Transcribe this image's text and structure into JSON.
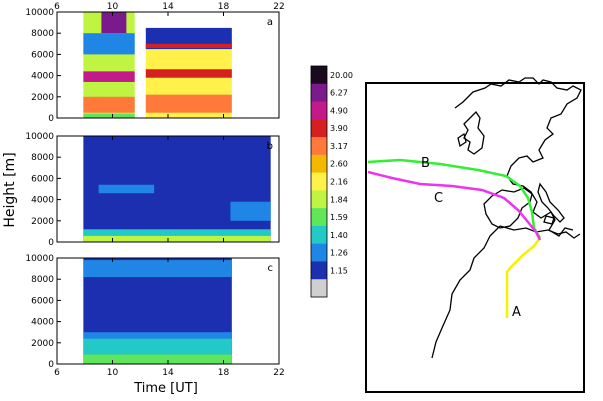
{
  "chart_data": {
    "type": "heatmap",
    "xlabel": "Time [UT]",
    "ylabel": "Height [m]",
    "x_ticks": [
      "6",
      "10",
      "14",
      "18",
      "22"
    ],
    "y_ticks": [
      "0",
      "2000",
      "4000",
      "6000",
      "8000",
      "10000"
    ],
    "xlim": [
      6,
      22
    ],
    "ylim": [
      0,
      10000
    ],
    "panels": [
      {
        "label": "a",
        "regions": [
          {
            "t0": 7.9,
            "t1": 11.6,
            "h0": 0,
            "h1": 10000,
            "v": 1.9
          },
          {
            "t0": 12.4,
            "t1": 18.6,
            "h0": 0,
            "h1": 6500,
            "v": 2.3
          },
          {
            "t0": 12.4,
            "t1": 18.6,
            "h0": 6500,
            "h1": 8500,
            "v": 1.15
          },
          {
            "t0": 7.9,
            "t1": 11.6,
            "h0": 3400,
            "h1": 4400,
            "v": 4.9
          },
          {
            "t0": 12.4,
            "t1": 18.6,
            "h0": 3800,
            "h1": 4600,
            "v": 3.9
          },
          {
            "t0": 7.9,
            "t1": 11.6,
            "h0": 500,
            "h1": 2000,
            "v": 3.17
          },
          {
            "t0": 12.4,
            "t1": 18.6,
            "h0": 500,
            "h1": 2200,
            "v": 3.17
          },
          {
            "t0": 7.9,
            "t1": 11.6,
            "h0": 6000,
            "h1": 8000,
            "v": 1.26
          },
          {
            "t0": 9.2,
            "t1": 11.0,
            "h0": 8000,
            "h1": 10000,
            "v": 6.27
          },
          {
            "t0": 12.4,
            "t1": 18.6,
            "h0": 6600,
            "h1": 7000,
            "v": 3.9
          },
          {
            "t0": 7.9,
            "t1": 11.6,
            "h0": 0,
            "h1": 400,
            "v": 1.59
          }
        ]
      },
      {
        "label": "b",
        "regions": [
          {
            "t0": 7.9,
            "t1": 21.4,
            "h0": 0,
            "h1": 10000,
            "v": 1.15
          },
          {
            "t0": 7.9,
            "t1": 21.4,
            "h0": 0,
            "h1": 600,
            "v": 1.84
          },
          {
            "t0": 7.9,
            "t1": 21.4,
            "h0": 600,
            "h1": 1200,
            "v": 1.4
          },
          {
            "t0": 9.0,
            "t1": 13.0,
            "h0": 4600,
            "h1": 5400,
            "v": 1.26
          },
          {
            "t0": 18.5,
            "t1": 21.4,
            "h0": 2000,
            "h1": 3800,
            "v": 1.26
          }
        ]
      },
      {
        "label": "c",
        "regions": [
          {
            "t0": 7.9,
            "t1": 18.6,
            "h0": 0,
            "h1": 10000,
            "v": 1.15
          },
          {
            "t0": 7.9,
            "t1": 18.6,
            "h0": 0,
            "h1": 900,
            "v": 1.59
          },
          {
            "t0": 7.9,
            "t1": 18.6,
            "h0": 900,
            "h1": 2400,
            "v": 1.4
          },
          {
            "t0": 7.9,
            "t1": 18.6,
            "h0": 2400,
            "h1": 3000,
            "v": 1.26
          },
          {
            "t0": 7.9,
            "t1": 18.6,
            "h0": 8200,
            "h1": 9800,
            "v": 1.26
          }
        ]
      }
    ],
    "colorbar": {
      "levels": [
        "20.00",
        "6.27",
        "4.90",
        "3.90",
        "3.17",
        "2.60",
        "2.16",
        "1.84",
        "1.59",
        "1.40",
        "1.26",
        "1.15"
      ],
      "colors": [
        "#1a0a1e",
        "#7a1a8c",
        "#c21a8a",
        "#d62020",
        "#ff7a3a",
        "#f5b800",
        "#fff04a",
        "#bff542",
        "#5fe65a",
        "#22c9c6",
        "#1f86e6",
        "#1b2fb0",
        "#cfcfcf"
      ]
    }
  },
  "map": {
    "trajectories": [
      {
        "label": "A",
        "color": "#f5f200"
      },
      {
        "label": "B",
        "color": "#33ee33"
      },
      {
        "label": "C",
        "color": "#ee33ee"
      }
    ]
  }
}
